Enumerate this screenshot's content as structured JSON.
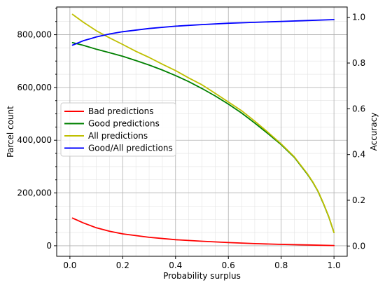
{
  "chart_data": {
    "type": "line",
    "xlabel": "Probability surplus",
    "ylabel_left": "Parcel count",
    "ylabel_right": "Accuracy",
    "xlim": [
      -0.05,
      1.05
    ],
    "ylim_left": [
      -40000,
      905000
    ],
    "ylim_right": [
      -0.045,
      1.045
    ],
    "x_ticks": [
      0.0,
      0.2,
      0.4,
      0.6,
      0.8,
      1.0
    ],
    "x_tick_labels": [
      "0.0",
      "0.2",
      "0.4",
      "0.6",
      "0.8",
      "1.0"
    ],
    "y_left_ticks": [
      0,
      200000,
      400000,
      600000,
      800000
    ],
    "y_left_tick_labels": [
      "0",
      "200,000",
      "400,000",
      "600,000",
      "800,000"
    ],
    "y_right_ticks": [
      0.0,
      0.2,
      0.4,
      0.6,
      0.8,
      1.0
    ],
    "y_right_tick_labels": [
      "0.0",
      "0.2",
      "0.4",
      "0.6",
      "0.8",
      "1.0"
    ],
    "grid": true,
    "minor_grid": true,
    "legend_placement": "center-left",
    "series": [
      {
        "name": "Bad predictions",
        "axis": "left",
        "color": "#ff0000",
        "x": [
          0.01,
          0.05,
          0.1,
          0.15,
          0.2,
          0.3,
          0.4,
          0.5,
          0.6,
          0.7,
          0.8,
          0.9,
          1.0
        ],
        "y": [
          105000,
          87000,
          68000,
          55000,
          45000,
          32000,
          23000,
          17000,
          12000,
          8000,
          5000,
          3000,
          1000
        ]
      },
      {
        "name": "Good predictions",
        "axis": "left",
        "color": "#008000",
        "x": [
          0.01,
          0.05,
          0.1,
          0.15,
          0.2,
          0.25,
          0.3,
          0.35,
          0.4,
          0.45,
          0.5,
          0.55,
          0.6,
          0.65,
          0.7,
          0.75,
          0.8,
          0.85,
          0.9,
          0.92,
          0.94,
          0.96,
          0.98,
          1.0
        ],
        "y": [
          770000,
          760000,
          745000,
          732000,
          718000,
          702000,
          685000,
          666000,
          645000,
          622000,
          596000,
          568000,
          537000,
          503000,
          465000,
          425000,
          383000,
          335000,
          270000,
          240000,
          205000,
          160000,
          110000,
          50000
        ]
      },
      {
        "name": "All predictions",
        "axis": "left",
        "color": "#bfbf00",
        "x": [
          0.01,
          0.05,
          0.1,
          0.15,
          0.2,
          0.25,
          0.3,
          0.35,
          0.4,
          0.45,
          0.5,
          0.55,
          0.6,
          0.65,
          0.7,
          0.75,
          0.8,
          0.85,
          0.9,
          0.92,
          0.94,
          0.96,
          0.98,
          1.0
        ],
        "y": [
          877000,
          848000,
          815000,
          788000,
          763000,
          737000,
          714000,
          688000,
          664000,
          636000,
          610000,
          578000,
          545000,
          512000,
          472000,
          430000,
          386000,
          337000,
          272000,
          241000,
          206000,
          161000,
          111000,
          50000
        ]
      },
      {
        "name": "Good/All predictions",
        "axis": "right",
        "color": "#0000ff",
        "x": [
          0.01,
          0.05,
          0.1,
          0.15,
          0.2,
          0.3,
          0.4,
          0.5,
          0.6,
          0.7,
          0.8,
          0.9,
          1.0
        ],
        "y": [
          0.878,
          0.897,
          0.914,
          0.927,
          0.937,
          0.951,
          0.961,
          0.968,
          0.974,
          0.978,
          0.982,
          0.986,
          0.99
        ]
      }
    ]
  }
}
